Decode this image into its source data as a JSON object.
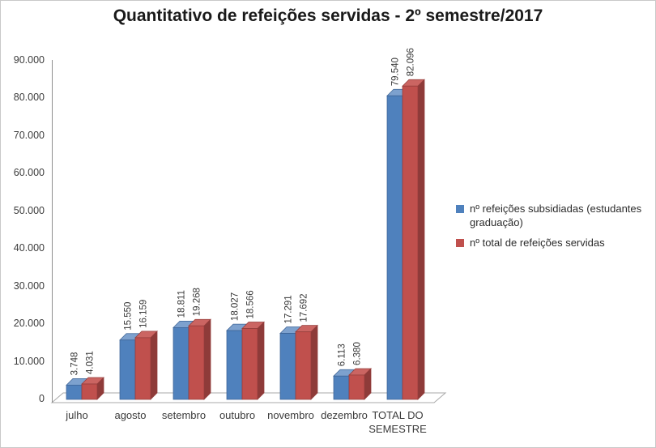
{
  "title": "Quantitativo de refeições servidas - 2º semestre/2017",
  "chart_data": {
    "type": "bar",
    "style_3d": true,
    "title": "Quantitativo de refeições servidas - 2º semestre/2017",
    "categories": [
      "julho",
      "agosto",
      "setembro",
      "outubro",
      "novembro",
      "dezembro",
      "TOTAL DO SEMESTRE"
    ],
    "series": [
      {
        "name": "nº refeições subsidiadas (estudantes graduação)",
        "color": "#4F81BD",
        "color_top": "#7DA1CE",
        "color_edge": "#3D6496",
        "values": [
          3748,
          15550,
          18811,
          18027,
          17291,
          6113,
          79540
        ],
        "value_labels": [
          "3.748",
          "15.550",
          "18.811",
          "18.027",
          "17.291",
          "6.113",
          "79.540"
        ]
      },
      {
        "name": "nº total de refeições servidas",
        "color": "#C0504D",
        "color_top": "#CB6562",
        "color_side": "#8E3B39",
        "color_edge": "#943D3B",
        "values": [
          4031,
          16159,
          19268,
          18566,
          17692,
          6380,
          82096
        ],
        "value_labels": [
          "4.031",
          "16.159",
          "19.268",
          "18.566",
          "17.692",
          "6.380",
          "82.096"
        ]
      }
    ],
    "y_axis": {
      "min": 0,
      "max": 90000,
      "step": 10000,
      "tick_labels": [
        "0",
        "10.000",
        "20.000",
        "30.000",
        "40.000",
        "50.000",
        "60.000",
        "70.000",
        "80.000",
        "90.000"
      ]
    },
    "xlabel": "",
    "ylabel": "",
    "gridlines": false,
    "legend_position": "right",
    "axis_color": "#8e8e8e",
    "floor_outline_color": "#a9a9a9",
    "label_color": "#383838"
  }
}
